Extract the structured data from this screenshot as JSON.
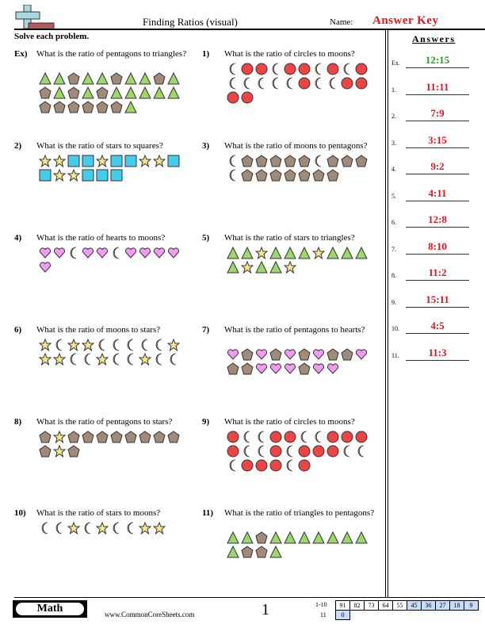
{
  "header": {
    "title": "Finding Ratios (visual)",
    "name_label": "Name:",
    "name_value": "Answer Key",
    "instructions": "Solve each problem."
  },
  "colors": {
    "answer_red": "#e8121b",
    "example_green": "#1aa61a",
    "triangle": "#9bd86a",
    "pentagon": "#a08a78",
    "circle": "#ee4444",
    "moon": "#f4a055",
    "star": "#f8e88a",
    "square": "#44ccee",
    "heart": "#f09cf0"
  },
  "questions": [
    {
      "num": "Ex)",
      "text": "What is the ratio of pentagons to triangles?",
      "shapes": [
        "T",
        "T",
        "P",
        "T",
        "T",
        "P",
        "T",
        "T",
        "P",
        "T",
        "P",
        "T",
        "P",
        "T",
        "P",
        "T",
        "T",
        "T",
        "T",
        "T",
        "P",
        "P",
        "P",
        "P",
        "P",
        "P",
        "T"
      ]
    },
    {
      "num": "1)",
      "text": "What is the ratio of circles to moons?",
      "shapes": [
        "M",
        "C",
        "C",
        "M",
        "C",
        "C",
        "M",
        "C",
        "M",
        "C",
        "M",
        "M",
        "M",
        "M",
        "M",
        "C",
        "M",
        "M",
        "C",
        "C",
        "C",
        "C"
      ]
    },
    {
      "num": "2)",
      "text": "What is the ratio of stars to squares?",
      "shapes": [
        "S",
        "S",
        "Q",
        "Q",
        "S",
        "Q",
        "Q",
        "S",
        "S",
        "Q",
        "Q",
        "S",
        "S",
        "Q",
        "Q",
        "Q"
      ]
    },
    {
      "num": "3)",
      "text": "What is the ratio of moons to pentagons?",
      "shapes": [
        "M",
        "P",
        "P",
        "P",
        "P",
        "P",
        "M",
        "P",
        "P",
        "P",
        "M",
        "P",
        "P",
        "P",
        "P",
        "P",
        "P",
        "P"
      ]
    },
    {
      "num": "4)",
      "text": "What is the ratio of hearts to moons?",
      "shapes": [
        "H",
        "H",
        "M",
        "H",
        "H",
        "M",
        "H",
        "H",
        "H",
        "H",
        "H"
      ]
    },
    {
      "num": "5)",
      "text": "What is the ratio of stars to triangles?",
      "shapes": [
        "T",
        "T",
        "S",
        "T",
        "T",
        "T",
        "S",
        "T",
        "T",
        "T",
        "T",
        "S",
        "T",
        "T",
        "S"
      ]
    },
    {
      "num": "6)",
      "text": "What is the ratio of moons to stars?",
      "shapes": [
        "S",
        "M",
        "S",
        "S",
        "M",
        "M",
        "M",
        "M",
        "M",
        "S",
        "S",
        "S",
        "M",
        "M",
        "S",
        "M",
        "M",
        "S",
        "M",
        "M"
      ]
    },
    {
      "num": "7)",
      "text": "What is the ratio of pentagons to hearts?",
      "shapes": [
        "H",
        "P",
        "H",
        "P",
        "H",
        "P",
        "H",
        "P",
        "P",
        "H",
        "P",
        "P",
        "H",
        "H",
        "H",
        "P",
        "H",
        "H"
      ]
    },
    {
      "num": "8)",
      "text": "What is the ratio of pentagons to stars?",
      "shapes": [
        "P",
        "S",
        "P",
        "P",
        "P",
        "P",
        "P",
        "P",
        "P",
        "P",
        "P",
        "S",
        "P"
      ]
    },
    {
      "num": "9)",
      "text": "What is the ratio of circles to moons?",
      "shapes": [
        "C",
        "M",
        "M",
        "C",
        "C",
        "M",
        "M",
        "C",
        "C",
        "C",
        "C",
        "M",
        "M",
        "C",
        "M",
        "C",
        "C",
        "C",
        "M",
        "M",
        "M",
        "C",
        "C",
        "C",
        "M",
        "C"
      ]
    },
    {
      "num": "10)",
      "text": "What is the ratio of stars to moons?",
      "shapes": [
        "M",
        "M",
        "S",
        "M",
        "S",
        "M",
        "M",
        "S",
        "S"
      ]
    },
    {
      "num": "11)",
      "text": "What is the ratio of triangles to pentagons?",
      "shapes": [
        "T",
        "T",
        "P",
        "T",
        "T",
        "T",
        "T",
        "T",
        "T",
        "T",
        "T",
        "P",
        "P",
        "T"
      ]
    }
  ],
  "answers": {
    "title": "Answers",
    "items": [
      {
        "label": "Ex.",
        "value": "12:15"
      },
      {
        "label": "1.",
        "value": "11:11"
      },
      {
        "label": "2.",
        "value": "7:9"
      },
      {
        "label": "3.",
        "value": "3:15"
      },
      {
        "label": "4.",
        "value": "9:2"
      },
      {
        "label": "5.",
        "value": "4:11"
      },
      {
        "label": "6.",
        "value": "12:8"
      },
      {
        "label": "7.",
        "value": "8:10"
      },
      {
        "label": "8.",
        "value": "11:2"
      },
      {
        "label": "9.",
        "value": "15:11"
      },
      {
        "label": "10.",
        "value": "4:5"
      },
      {
        "label": "11.",
        "value": "11:3"
      }
    ]
  },
  "footer": {
    "subject": "Math",
    "site": "www.CommonCoreSheets.com",
    "page": "1",
    "score_row1_label": "1-10",
    "score_row1": [
      "91",
      "82",
      "73",
      "64",
      "55",
      "45",
      "36",
      "27",
      "18",
      "9"
    ],
    "score_row2_label": "11",
    "score_row2": [
      "0"
    ]
  }
}
